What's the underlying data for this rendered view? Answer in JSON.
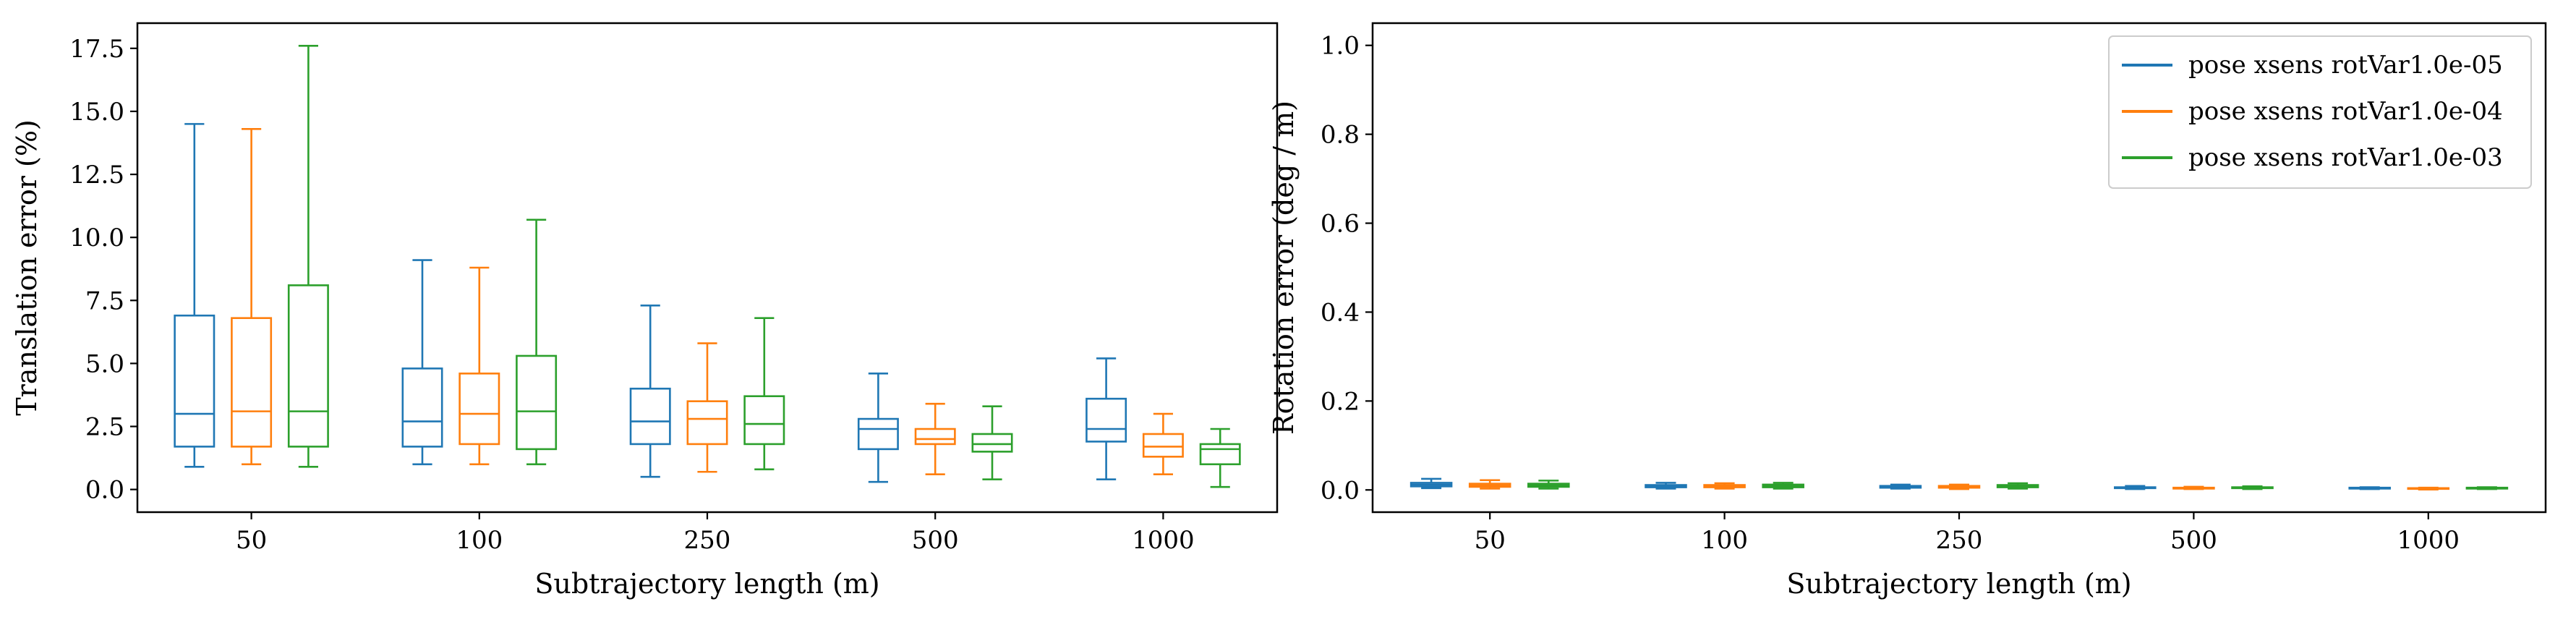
{
  "chart_data": [
    {
      "type": "box",
      "xlabel": "Subtrajectory length (m)",
      "ylabel": "Translation error (%)",
      "ylim": [
        -0.9,
        18.5
      ],
      "yticks": [
        0.0,
        2.5,
        5.0,
        7.5,
        10.0,
        12.5,
        15.0,
        17.5
      ],
      "ytick_labels": [
        "0.0",
        "2.5",
        "5.0",
        "7.5",
        "10.0",
        "12.5",
        "15.0",
        "17.5"
      ],
      "categories": [
        "50",
        "100",
        "250",
        "500",
        "1000"
      ],
      "series": [
        {
          "name": "pose xsens rotVar1.0e-05",
          "color": "#1f77b4",
          "boxes": [
            {
              "min": 0.9,
              "q1": 1.7,
              "median": 3.0,
              "q3": 6.9,
              "max": 14.5
            },
            {
              "min": 1.0,
              "q1": 1.7,
              "median": 2.7,
              "q3": 4.8,
              "max": 9.1
            },
            {
              "min": 0.5,
              "q1": 1.8,
              "median": 2.7,
              "q3": 4.0,
              "max": 7.3
            },
            {
              "min": 0.3,
              "q1": 1.6,
              "median": 2.4,
              "q3": 2.8,
              "max": 4.6
            },
            {
              "min": 0.4,
              "q1": 1.9,
              "median": 2.4,
              "q3": 3.6,
              "max": 5.2
            }
          ]
        },
        {
          "name": "pose xsens rotVar1.0e-04",
          "color": "#ff7f0e",
          "boxes": [
            {
              "min": 1.0,
              "q1": 1.7,
              "median": 3.1,
              "q3": 6.8,
              "max": 14.3
            },
            {
              "min": 1.0,
              "q1": 1.8,
              "median": 3.0,
              "q3": 4.6,
              "max": 8.8
            },
            {
              "min": 0.7,
              "q1": 1.8,
              "median": 2.8,
              "q3": 3.5,
              "max": 5.8
            },
            {
              "min": 0.6,
              "q1": 1.8,
              "median": 2.0,
              "q3": 2.4,
              "max": 3.4
            },
            {
              "min": 0.6,
              "q1": 1.3,
              "median": 1.7,
              "q3": 2.2,
              "max": 3.0
            }
          ]
        },
        {
          "name": "pose xsens rotVar1.0e-03",
          "color": "#2ca02c",
          "boxes": [
            {
              "min": 0.9,
              "q1": 1.7,
              "median": 3.1,
              "q3": 8.1,
              "max": 17.6
            },
            {
              "min": 1.0,
              "q1": 1.6,
              "median": 3.1,
              "q3": 5.3,
              "max": 10.7
            },
            {
              "min": 0.8,
              "q1": 1.8,
              "median": 2.6,
              "q3": 3.7,
              "max": 6.8
            },
            {
              "min": 0.4,
              "q1": 1.5,
              "median": 1.8,
              "q3": 2.2,
              "max": 3.3
            },
            {
              "min": 0.1,
              "q1": 1.0,
              "median": 1.6,
              "q3": 1.8,
              "max": 2.4
            }
          ]
        }
      ],
      "legend": "none"
    },
    {
      "type": "box",
      "xlabel": "Subtrajectory length (m)",
      "ylabel": "Rotation error (deg / m)",
      "ylim": [
        -0.05,
        1.05
      ],
      "yticks": [
        0.0,
        0.2,
        0.4,
        0.6,
        0.8,
        1.0
      ],
      "ytick_labels": [
        "0.0",
        "0.2",
        "0.4",
        "0.6",
        "0.8",
        "1.0"
      ],
      "categories": [
        "50",
        "100",
        "250",
        "500",
        "1000"
      ],
      "series": [
        {
          "name": "pose xsens rotVar1.0e-05",
          "color": "#1f77b4",
          "boxes": [
            {
              "min": 0.004,
              "q1": 0.008,
              "median": 0.012,
              "q3": 0.016,
              "max": 0.025
            },
            {
              "min": 0.003,
              "q1": 0.006,
              "median": 0.008,
              "q3": 0.011,
              "max": 0.016
            },
            {
              "min": 0.003,
              "q1": 0.005,
              "median": 0.007,
              "q3": 0.009,
              "max": 0.012
            },
            {
              "min": 0.002,
              "q1": 0.004,
              "median": 0.005,
              "q3": 0.006,
              "max": 0.009
            },
            {
              "min": 0.002,
              "q1": 0.003,
              "median": 0.004,
              "q3": 0.005,
              "max": 0.006
            }
          ]
        },
        {
          "name": "pose xsens rotVar1.0e-04",
          "color": "#ff7f0e",
          "boxes": [
            {
              "min": 0.003,
              "q1": 0.007,
              "median": 0.01,
              "q3": 0.014,
              "max": 0.022
            },
            {
              "min": 0.003,
              "q1": 0.006,
              "median": 0.008,
              "q3": 0.011,
              "max": 0.015
            },
            {
              "min": 0.002,
              "q1": 0.005,
              "median": 0.007,
              "q3": 0.009,
              "max": 0.012
            },
            {
              "min": 0.002,
              "q1": 0.003,
              "median": 0.004,
              "q3": 0.005,
              "max": 0.007
            },
            {
              "min": 0.001,
              "q1": 0.003,
              "median": 0.004,
              "q3": 0.004,
              "max": 0.005
            }
          ]
        },
        {
          "name": "pose xsens rotVar1.0e-03",
          "color": "#2ca02c",
          "boxes": [
            {
              "min": 0.003,
              "q1": 0.007,
              "median": 0.01,
              "q3": 0.014,
              "max": 0.021
            },
            {
              "min": 0.003,
              "q1": 0.006,
              "median": 0.009,
              "q3": 0.012,
              "max": 0.016
            },
            {
              "min": 0.003,
              "q1": 0.006,
              "median": 0.008,
              "q3": 0.011,
              "max": 0.015
            },
            {
              "min": 0.002,
              "q1": 0.004,
              "median": 0.005,
              "q3": 0.006,
              "max": 0.008
            },
            {
              "min": 0.002,
              "q1": 0.003,
              "median": 0.004,
              "q3": 0.005,
              "max": 0.006
            }
          ]
        }
      ],
      "legend": "top-right"
    }
  ]
}
